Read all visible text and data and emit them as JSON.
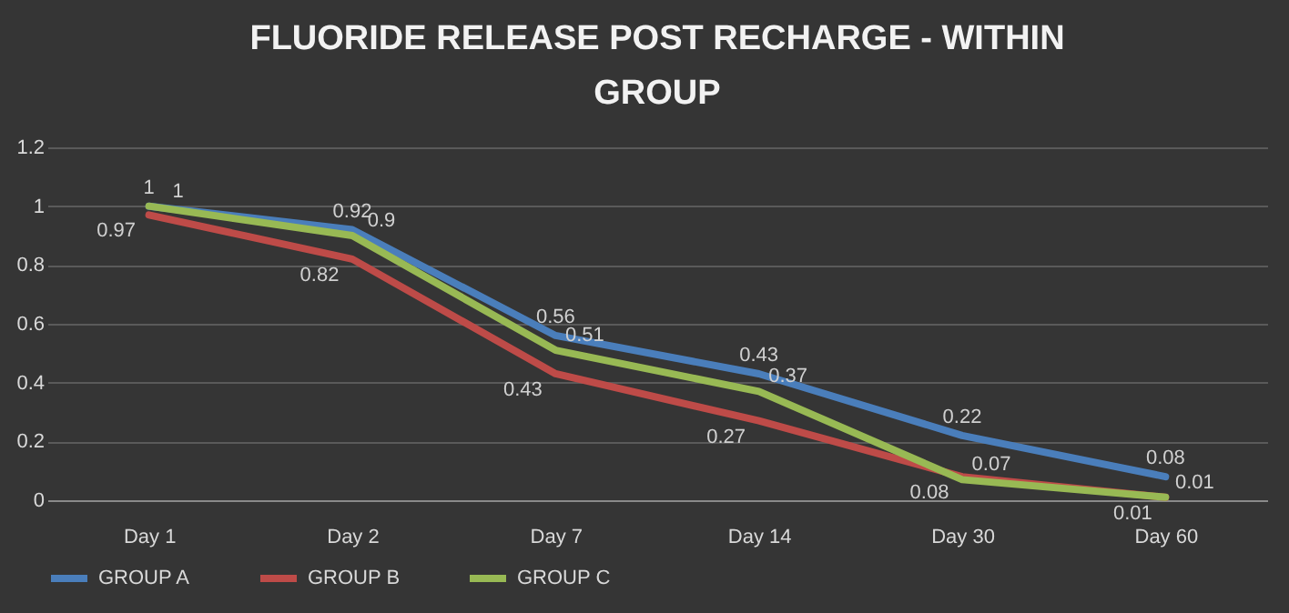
{
  "chart_data": {
    "type": "line",
    "title": "FLUORIDE RELEASE POST RECHARGE - WITHIN GROUP",
    "categories": [
      "Day 1",
      "Day 2",
      "Day 7",
      "Day 14",
      "Day 30",
      "Day 60"
    ],
    "series": [
      {
        "name": "GROUP A",
        "color": "#4a7ebb",
        "values": [
          1,
          0.92,
          0.56,
          0.43,
          0.22,
          0.08
        ]
      },
      {
        "name": "GROUP B",
        "color": "#be4b48",
        "values": [
          0.97,
          0.82,
          0.43,
          0.27,
          0.08,
          0.01
        ]
      },
      {
        "name": "GROUP C",
        "color": "#98b954",
        "values": [
          1,
          0.9,
          0.51,
          0.37,
          0.07,
          0.01
        ]
      }
    ],
    "ylim": [
      0,
      1.2
    ],
    "yticks": [
      0,
      0.2,
      0.4,
      0.6,
      0.8,
      1,
      1.2
    ],
    "grid": "y",
    "legend": "bottom",
    "data_labels": true,
    "marker": "none",
    "line_style": "solid"
  }
}
